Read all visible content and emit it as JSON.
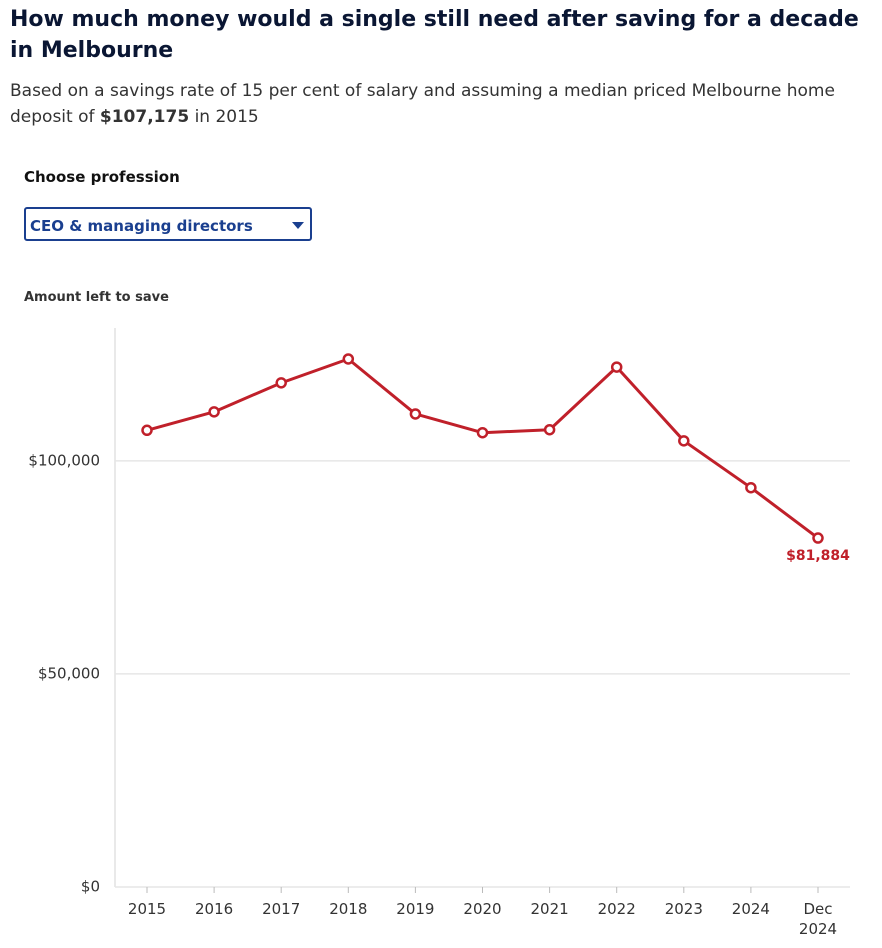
{
  "header": {
    "title": "How much money would a single still need after saving for a decade in Melbourne",
    "subtitle_before": "Based on a savings rate of 15 per cent of salary and assuming a median priced Melbourne home deposit of",
    "subtitle_bold": "$107,175",
    "subtitle_after": "in 2015"
  },
  "control": {
    "label": "Choose profession",
    "selected": "CEO & managing directors"
  },
  "chart_data": {
    "type": "line",
    "y_label": "Amount left to save",
    "categories": [
      "2015",
      "2016",
      "2017",
      "2018",
      "2019",
      "2020",
      "2021",
      "2022",
      "2023",
      "2024",
      "Dec 2024"
    ],
    "values": [
      107175,
      111500,
      118300,
      123900,
      111000,
      106600,
      107300,
      122000,
      104700,
      93700,
      81884
    ],
    "value_labels": [
      null,
      null,
      null,
      null,
      null,
      null,
      null,
      null,
      null,
      null,
      "$81,884"
    ],
    "color": "#c0202a",
    "ylim": [
      0,
      130000
    ],
    "yticks": [
      {
        "value": 0,
        "label": "$0"
      },
      {
        "value": 50000,
        "label": "$50,000"
      },
      {
        "value": 100000,
        "label": "$100,000"
      }
    ],
    "grid": true
  }
}
